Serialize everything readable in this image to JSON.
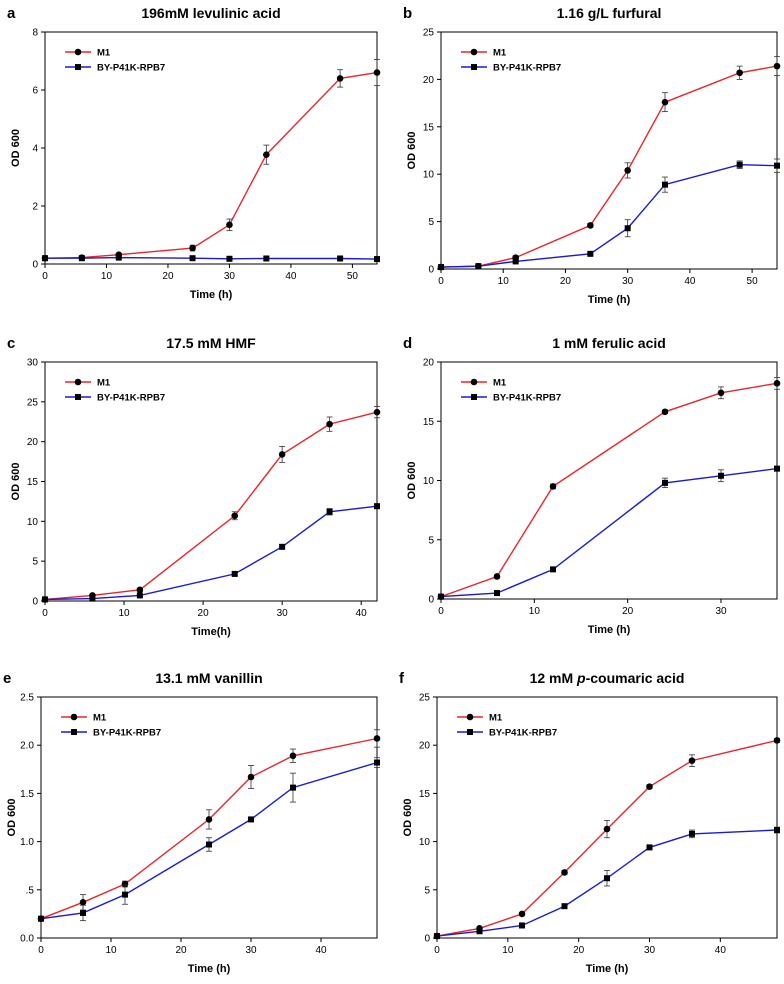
{
  "figure": {
    "description_letters": [
      "a",
      "b",
      "c",
      "d",
      "e",
      "f"
    ]
  },
  "chart_data": [
    {
      "type": "line",
      "letter": "a",
      "title": "196mM levulinic acid",
      "xlabel": "Time (h)",
      "ylabel": "OD 600",
      "xlim": [
        0,
        54
      ],
      "ylim": [
        0,
        8
      ],
      "xticks": [
        0,
        10,
        20,
        30,
        40,
        50
      ],
      "yticks": [
        0,
        2,
        4,
        6,
        8
      ],
      "ytick_labels": [
        "0",
        "2",
        "4",
        "6",
        "8"
      ],
      "series": [
        {
          "name": "M1",
          "color": "#e8262a",
          "marker": "circle",
          "x": [
            0,
            6,
            12,
            24,
            30,
            36,
            48,
            54
          ],
          "y": [
            0.2,
            0.22,
            0.32,
            0.55,
            1.35,
            3.77,
            6.4,
            6.6
          ],
          "err": [
            0.03,
            0.03,
            0.04,
            0.1,
            0.2,
            0.33,
            0.3,
            0.45
          ]
        },
        {
          "name": "BY-P41K-RPB7",
          "color": "#1a1ad6",
          "marker": "square",
          "x": [
            0,
            6,
            12,
            24,
            30,
            36,
            48,
            54
          ],
          "y": [
            0.2,
            0.2,
            0.22,
            0.2,
            0.18,
            0.19,
            0.19,
            0.17
          ],
          "err": [
            0.02,
            0.02,
            0.02,
            0.02,
            0.02,
            0.02,
            0.02,
            0.02
          ]
        }
      ]
    },
    {
      "type": "line",
      "letter": "b",
      "title": "1.16 g/L furfural",
      "xlabel": "Time (h)",
      "ylabel": "OD 600",
      "xlim": [
        0,
        54
      ],
      "ylim": [
        0,
        25
      ],
      "xticks": [
        0,
        10,
        20,
        30,
        40,
        50
      ],
      "yticks": [
        0,
        5,
        10,
        15,
        20,
        25
      ],
      "ytick_labels": [
        "0",
        "5",
        "10",
        "15",
        "20",
        "25"
      ],
      "series": [
        {
          "name": "M1",
          "color": "#e8262a",
          "marker": "circle",
          "x": [
            0,
            6,
            12,
            24,
            30,
            36,
            48,
            54
          ],
          "y": [
            0.2,
            0.3,
            1.2,
            4.6,
            10.4,
            17.6,
            20.7,
            21.4
          ],
          "err": [
            0.05,
            0.05,
            0.2,
            0.2,
            0.8,
            1.0,
            0.7,
            1.0
          ]
        },
        {
          "name": "BY-P41K-RPB7",
          "color": "#1a1ad6",
          "marker": "square",
          "x": [
            0,
            6,
            12,
            24,
            30,
            36,
            48,
            54
          ],
          "y": [
            0.2,
            0.3,
            0.8,
            1.6,
            4.3,
            8.9,
            11.0,
            10.9
          ],
          "err": [
            0.05,
            0.05,
            0.1,
            0.15,
            0.9,
            0.8,
            0.4,
            0.7
          ]
        }
      ]
    },
    {
      "type": "line",
      "letter": "c",
      "title": "17.5 mM HMF",
      "xlabel": "Time(h)",
      "ylabel": "OD 600",
      "xlim": [
        0,
        42
      ],
      "ylim": [
        0,
        30
      ],
      "xticks": [
        0,
        10,
        20,
        30,
        40
      ],
      "yticks": [
        0,
        5,
        10,
        15,
        20,
        25,
        30
      ],
      "ytick_labels": [
        "0",
        "5",
        "10",
        "15",
        "20",
        "25",
        "30"
      ],
      "series": [
        {
          "name": "M1",
          "color": "#e8262a",
          "marker": "circle",
          "x": [
            0,
            6,
            12,
            24,
            30,
            36,
            42
          ],
          "y": [
            0.2,
            0.7,
            1.4,
            10.7,
            18.4,
            22.2,
            23.7
          ],
          "err": [
            0.05,
            0.1,
            0.2,
            0.5,
            1.0,
            0.9,
            0.7
          ]
        },
        {
          "name": "BY-P41K-RPB7",
          "color": "#1a1ad6",
          "marker": "square",
          "x": [
            0,
            6,
            12,
            24,
            30,
            36,
            42
          ],
          "y": [
            0.2,
            0.3,
            0.7,
            3.4,
            6.8,
            11.2,
            11.9
          ],
          "err": [
            0.05,
            0.05,
            0.1,
            0.2,
            0.3,
            0.4,
            0.3
          ]
        }
      ]
    },
    {
      "type": "line",
      "letter": "d",
      "title": "1 mM ferulic acid",
      "xlabel": "Time (h)",
      "ylabel": "OD 600",
      "xlim": [
        0,
        36
      ],
      "ylim": [
        0,
        20
      ],
      "xticks": [
        0,
        10,
        20,
        30
      ],
      "yticks": [
        0,
        5,
        10,
        15,
        20
      ],
      "ytick_labels": [
        "0",
        "5",
        "10",
        "15",
        "20"
      ],
      "series": [
        {
          "name": "M1",
          "color": "#e8262a",
          "marker": "circle",
          "x": [
            0,
            6,
            12,
            24,
            30,
            36
          ],
          "y": [
            0.2,
            1.9,
            9.5,
            15.8,
            17.4,
            18.2
          ],
          "err": [
            0.05,
            0.1,
            0.2,
            0.15,
            0.5,
            0.5
          ]
        },
        {
          "name": "BY-P41K-RPB7",
          "color": "#1a1ad6",
          "marker": "square",
          "x": [
            0,
            6,
            12,
            24,
            30,
            36
          ],
          "y": [
            0.2,
            0.5,
            2.5,
            9.8,
            10.4,
            11.0
          ],
          "err": [
            0.05,
            0.05,
            0.15,
            0.4,
            0.5,
            0.2
          ]
        }
      ]
    },
    {
      "type": "line",
      "letter": "e",
      "title": "13.1 mM vanillin",
      "xlabel": "Time (h)",
      "ylabel": "OD 600",
      "xlim": [
        0,
        48
      ],
      "ylim": [
        0,
        2.5
      ],
      "xticks": [
        0,
        10,
        20,
        30,
        40
      ],
      "yticks": [
        0,
        0.5,
        1.0,
        1.5,
        2.0,
        2.5
      ],
      "ytick_labels": [
        "0.0",
        ".5",
        "1.0",
        "1.5",
        "2.0",
        "2.5"
      ],
      "series": [
        {
          "name": "M1",
          "color": "#e8262a",
          "marker": "circle",
          "x": [
            0,
            6,
            12,
            24,
            30,
            36,
            48
          ],
          "y": [
            0.2,
            0.37,
            0.56,
            1.23,
            1.67,
            1.89,
            2.07
          ],
          "err": [
            0.02,
            0.08,
            0.03,
            0.1,
            0.12,
            0.07,
            0.09
          ]
        },
        {
          "name": "BY-P41K-RPB7",
          "color": "#1a1ad6",
          "marker": "square",
          "x": [
            0,
            6,
            12,
            24,
            30,
            36,
            48
          ],
          "y": [
            0.2,
            0.26,
            0.45,
            0.97,
            1.23,
            1.56,
            1.82
          ],
          "err": [
            0.02,
            0.08,
            0.1,
            0.07,
            0.02,
            0.15,
            0.05
          ]
        }
      ]
    },
    {
      "type": "line",
      "letter": "f",
      "title": "12 mM p-coumaric acid",
      "title_parts": [
        "12 mM ",
        "p",
        "-coumaric acid"
      ],
      "xlabel": "Time (h)",
      "ylabel": "OD 600",
      "xlim": [
        0,
        48
      ],
      "ylim": [
        0,
        25
      ],
      "xticks": [
        0,
        10,
        20,
        30,
        40
      ],
      "yticks": [
        0,
        5,
        10,
        15,
        20,
        25
      ],
      "ytick_labels": [
        "0",
        "5",
        "10",
        "15",
        "20",
        "25"
      ],
      "series": [
        {
          "name": "M1",
          "color": "#e8262a",
          "marker": "circle",
          "x": [
            0,
            6,
            12,
            18,
            24,
            30,
            36,
            48
          ],
          "y": [
            0.2,
            1.0,
            2.5,
            6.8,
            11.3,
            15.7,
            18.4,
            20.5
          ],
          "err": [
            0.05,
            0.1,
            0.15,
            0.2,
            0.9,
            0.2,
            0.6,
            0.2
          ]
        },
        {
          "name": "BY-P41K-RPB7",
          "color": "#1a1ad6",
          "marker": "square",
          "x": [
            0,
            6,
            12,
            18,
            24,
            30,
            36,
            48
          ],
          "y": [
            0.2,
            0.7,
            1.3,
            3.3,
            6.2,
            9.4,
            10.8,
            11.2
          ],
          "err": [
            0.05,
            0.05,
            0.1,
            0.15,
            0.8,
            0.15,
            0.4,
            0.3
          ]
        }
      ]
    }
  ]
}
